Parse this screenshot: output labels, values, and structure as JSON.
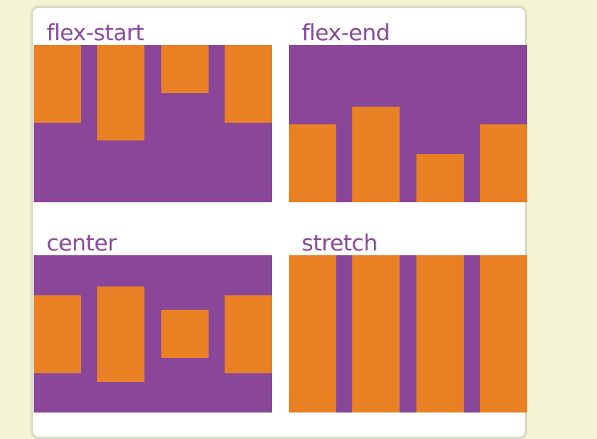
{
  "colors": {
    "background": "#f4f3d4",
    "card": "#ffffff",
    "container": "#8a4799",
    "item": "#e98124",
    "label": "#8a4a9a"
  },
  "panels": [
    {
      "title": "flex-start",
      "align": "flex-start",
      "item_heights": [
        97,
        119,
        60,
        97
      ]
    },
    {
      "title": "flex-end",
      "align": "flex-end",
      "item_heights": [
        97,
        119,
        60,
        97
      ]
    },
    {
      "title": "center",
      "align": "center",
      "item_heights": [
        97,
        119,
        60,
        97
      ]
    },
    {
      "title": "stretch",
      "align": "stretch",
      "item_heights": [
        null,
        null,
        null,
        null
      ]
    }
  ]
}
